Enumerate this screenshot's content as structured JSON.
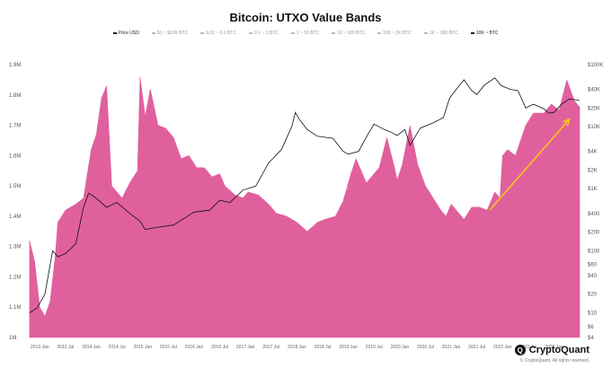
{
  "title": "Bitcoin: UTXO Value Bands",
  "legend": [
    {
      "label": "Price USD",
      "active": true
    },
    {
      "label": "$1 ~ $10K BTC",
      "active": false
    },
    {
      "label": "0.01 ~ 0.1 BTC",
      "active": false
    },
    {
      "label": "0.1 ~ 1 BTC",
      "active": false
    },
    {
      "label": "1 ~ 10 BTC",
      "active": false
    },
    {
      "label": "10 ~ 100 BTC",
      "active": false
    },
    {
      "label": "100 ~ 1K BTC",
      "active": false
    },
    {
      "label": "1K ~ 10K BTC",
      "active": false
    },
    {
      "label": "10K ~ BTC",
      "active": true
    }
  ],
  "watermark": "CryptoQuant",
  "brand": {
    "name": "CryptoQuant",
    "copyright": "© CryptoQuant. All rights reserved."
  },
  "chart_data": {
    "type": "area",
    "x_ticks": [
      "2013 Jan",
      "2013 Jul",
      "2014 Jan",
      "2014 Jul",
      "2015 Jan",
      "2015 Jul",
      "2016 Jan",
      "2016 Jul",
      "2017 Jan",
      "2017 Jul",
      "2018 Jan",
      "2018 Jul",
      "2019 Jan",
      "2019 Jul",
      "2020 Jan",
      "2020 Jul",
      "2021 Jan",
      "2021 Jul",
      "2022 Jan",
      "2022 Jul",
      "2023 Jan"
    ],
    "y_left_ticks": [
      "1M",
      "1.1M",
      "1.2M",
      "1.3M",
      "1.4M",
      "1.5M",
      "1.6M",
      "1.7M",
      "1.8M",
      "1.9M"
    ],
    "y_left_range": [
      1000000,
      1900000
    ],
    "y_right_ticks": [
      "$4",
      "$6",
      "$10",
      "$20",
      "$40",
      "$60",
      "$100",
      "$200",
      "$400",
      "$1K",
      "$2K",
      "$4K",
      "$10K",
      "$20K",
      "$40K",
      "$100K"
    ],
    "y_right_range": [
      4,
      100000
    ],
    "y_right_scale": "log",
    "series": [
      {
        "name": "10K ~ BTC",
        "color": "#e0609e",
        "points": [
          [
            2012.8,
            1320000
          ],
          [
            2012.9,
            1250000
          ],
          [
            2013.0,
            1100000
          ],
          [
            2013.1,
            1070000
          ],
          [
            2013.2,
            1120000
          ],
          [
            2013.3,
            1270000
          ],
          [
            2013.35,
            1380000
          ],
          [
            2013.5,
            1420000
          ],
          [
            2013.7,
            1440000
          ],
          [
            2013.85,
            1460000
          ],
          [
            2014.0,
            1620000
          ],
          [
            2014.1,
            1670000
          ],
          [
            2014.2,
            1790000
          ],
          [
            2014.3,
            1830000
          ],
          [
            2014.4,
            1500000
          ],
          [
            2014.6,
            1460000
          ],
          [
            2014.75,
            1510000
          ],
          [
            2014.9,
            1550000
          ],
          [
            2014.95,
            1860000
          ],
          [
            2015.05,
            1730000
          ],
          [
            2015.15,
            1820000
          ],
          [
            2015.3,
            1700000
          ],
          [
            2015.45,
            1690000
          ],
          [
            2015.6,
            1660000
          ],
          [
            2015.75,
            1590000
          ],
          [
            2015.9,
            1600000
          ],
          [
            2016.05,
            1560000
          ],
          [
            2016.2,
            1560000
          ],
          [
            2016.35,
            1530000
          ],
          [
            2016.5,
            1540000
          ],
          [
            2016.6,
            1500000
          ],
          [
            2016.8,
            1470000
          ],
          [
            2016.95,
            1460000
          ],
          [
            2017.05,
            1480000
          ],
          [
            2017.25,
            1470000
          ],
          [
            2017.45,
            1440000
          ],
          [
            2017.6,
            1410000
          ],
          [
            2017.8,
            1400000
          ],
          [
            2018.0,
            1380000
          ],
          [
            2018.2,
            1350000
          ],
          [
            2018.4,
            1380000
          ],
          [
            2018.55,
            1390000
          ],
          [
            2018.75,
            1400000
          ],
          [
            2018.9,
            1450000
          ],
          [
            2019.05,
            1540000
          ],
          [
            2019.15,
            1590000
          ],
          [
            2019.35,
            1510000
          ],
          [
            2019.6,
            1560000
          ],
          [
            2019.75,
            1660000
          ],
          [
            2019.9,
            1560000
          ],
          [
            2019.95,
            1520000
          ],
          [
            2020.05,
            1570000
          ],
          [
            2020.2,
            1700000
          ],
          [
            2020.35,
            1570000
          ],
          [
            2020.5,
            1500000
          ],
          [
            2020.65,
            1460000
          ],
          [
            2020.8,
            1420000
          ],
          [
            2020.9,
            1400000
          ],
          [
            2021.0,
            1440000
          ],
          [
            2021.25,
            1390000
          ],
          [
            2021.4,
            1430000
          ],
          [
            2021.55,
            1430000
          ],
          [
            2021.7,
            1420000
          ],
          [
            2021.85,
            1480000
          ],
          [
            2021.95,
            1460000
          ],
          [
            2022.0,
            1600000
          ],
          [
            2022.1,
            1620000
          ],
          [
            2022.25,
            1600000
          ],
          [
            2022.45,
            1700000
          ],
          [
            2022.6,
            1740000
          ],
          [
            2022.8,
            1740000
          ],
          [
            2022.95,
            1770000
          ],
          [
            2023.1,
            1750000
          ],
          [
            2023.25,
            1850000
          ],
          [
            2023.4,
            1780000
          ],
          [
            2023.5,
            1760000
          ]
        ]
      },
      {
        "name": "Price USD",
        "color": "#111111",
        "points": [
          [
            2012.8,
            10
          ],
          [
            2012.95,
            12
          ],
          [
            2013.1,
            20
          ],
          [
            2013.25,
            100
          ],
          [
            2013.35,
            80
          ],
          [
            2013.5,
            90
          ],
          [
            2013.7,
            130
          ],
          [
            2013.85,
            500
          ],
          [
            2013.95,
            850
          ],
          [
            2014.1,
            700
          ],
          [
            2014.3,
            500
          ],
          [
            2014.5,
            600
          ],
          [
            2014.75,
            400
          ],
          [
            2014.95,
            300
          ],
          [
            2015.05,
            220
          ],
          [
            2015.3,
            240
          ],
          [
            2015.6,
            260
          ],
          [
            2015.85,
            350
          ],
          [
            2016.0,
            420
          ],
          [
            2016.3,
            450
          ],
          [
            2016.5,
            650
          ],
          [
            2016.7,
            600
          ],
          [
            2016.95,
            950
          ],
          [
            2017.2,
            1100
          ],
          [
            2017.45,
            2600
          ],
          [
            2017.7,
            4300
          ],
          [
            2017.9,
            10000
          ],
          [
            2017.97,
            17000
          ],
          [
            2018.05,
            13000
          ],
          [
            2018.2,
            9000
          ],
          [
            2018.4,
            7000
          ],
          [
            2018.7,
            6500
          ],
          [
            2018.9,
            4000
          ],
          [
            2019.0,
            3600
          ],
          [
            2019.2,
            4000
          ],
          [
            2019.4,
            8000
          ],
          [
            2019.5,
            11000
          ],
          [
            2019.7,
            9000
          ],
          [
            2019.85,
            8000
          ],
          [
            2019.95,
            7200
          ],
          [
            2020.1,
            9000
          ],
          [
            2020.2,
            5000
          ],
          [
            2020.4,
            9500
          ],
          [
            2020.65,
            11500
          ],
          [
            2020.85,
            14000
          ],
          [
            2020.97,
            29000
          ],
          [
            2021.1,
            40000
          ],
          [
            2021.25,
            57000
          ],
          [
            2021.4,
            38000
          ],
          [
            2021.5,
            33000
          ],
          [
            2021.65,
            47000
          ],
          [
            2021.85,
            61000
          ],
          [
            2021.97,
            46000
          ],
          [
            2022.15,
            40000
          ],
          [
            2022.3,
            38000
          ],
          [
            2022.45,
            20000
          ],
          [
            2022.6,
            23000
          ],
          [
            2022.8,
            19500
          ],
          [
            2022.9,
            16500
          ],
          [
            2023.0,
            17000
          ],
          [
            2023.15,
            23000
          ],
          [
            2023.3,
            28000
          ],
          [
            2023.5,
            26500
          ]
        ]
      }
    ],
    "annotation": {
      "type": "arrow",
      "color": "#f5c518",
      "from": [
        2021.75,
        1420000
      ],
      "to": [
        2023.3,
        1720000
      ]
    }
  }
}
